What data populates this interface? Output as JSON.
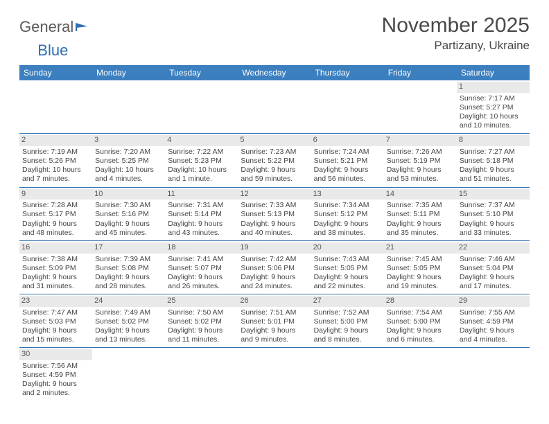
{
  "logo": {
    "text1": "General",
    "text2": "Blue"
  },
  "title": "November 2025",
  "location": "Partizany, Ukraine",
  "colors": {
    "header_bg": "#3b7fbf",
    "header_text": "#ffffff",
    "daynum_bg": "#e9e9e9",
    "rule": "#2f6fb0",
    "body_text": "#444444"
  },
  "day_names": [
    "Sunday",
    "Monday",
    "Tuesday",
    "Wednesday",
    "Thursday",
    "Friday",
    "Saturday"
  ],
  "weeks": [
    [
      {
        "empty": true
      },
      {
        "empty": true
      },
      {
        "empty": true
      },
      {
        "empty": true
      },
      {
        "empty": true
      },
      {
        "empty": true
      },
      {
        "d": "1",
        "sunrise": "Sunrise: 7:17 AM",
        "sunset": "Sunset: 5:27 PM",
        "dl1": "Daylight: 10 hours",
        "dl2": "and 10 minutes."
      }
    ],
    [
      {
        "d": "2",
        "sunrise": "Sunrise: 7:19 AM",
        "sunset": "Sunset: 5:26 PM",
        "dl1": "Daylight: 10 hours",
        "dl2": "and 7 minutes."
      },
      {
        "d": "3",
        "sunrise": "Sunrise: 7:20 AM",
        "sunset": "Sunset: 5:25 PM",
        "dl1": "Daylight: 10 hours",
        "dl2": "and 4 minutes."
      },
      {
        "d": "4",
        "sunrise": "Sunrise: 7:22 AM",
        "sunset": "Sunset: 5:23 PM",
        "dl1": "Daylight: 10 hours",
        "dl2": "and 1 minute."
      },
      {
        "d": "5",
        "sunrise": "Sunrise: 7:23 AM",
        "sunset": "Sunset: 5:22 PM",
        "dl1": "Daylight: 9 hours",
        "dl2": "and 59 minutes."
      },
      {
        "d": "6",
        "sunrise": "Sunrise: 7:24 AM",
        "sunset": "Sunset: 5:21 PM",
        "dl1": "Daylight: 9 hours",
        "dl2": "and 56 minutes."
      },
      {
        "d": "7",
        "sunrise": "Sunrise: 7:26 AM",
        "sunset": "Sunset: 5:19 PM",
        "dl1": "Daylight: 9 hours",
        "dl2": "and 53 minutes."
      },
      {
        "d": "8",
        "sunrise": "Sunrise: 7:27 AM",
        "sunset": "Sunset: 5:18 PM",
        "dl1": "Daylight: 9 hours",
        "dl2": "and 51 minutes."
      }
    ],
    [
      {
        "d": "9",
        "sunrise": "Sunrise: 7:28 AM",
        "sunset": "Sunset: 5:17 PM",
        "dl1": "Daylight: 9 hours",
        "dl2": "and 48 minutes."
      },
      {
        "d": "10",
        "sunrise": "Sunrise: 7:30 AM",
        "sunset": "Sunset: 5:16 PM",
        "dl1": "Daylight: 9 hours",
        "dl2": "and 45 minutes."
      },
      {
        "d": "11",
        "sunrise": "Sunrise: 7:31 AM",
        "sunset": "Sunset: 5:14 PM",
        "dl1": "Daylight: 9 hours",
        "dl2": "and 43 minutes."
      },
      {
        "d": "12",
        "sunrise": "Sunrise: 7:33 AM",
        "sunset": "Sunset: 5:13 PM",
        "dl1": "Daylight: 9 hours",
        "dl2": "and 40 minutes."
      },
      {
        "d": "13",
        "sunrise": "Sunrise: 7:34 AM",
        "sunset": "Sunset: 5:12 PM",
        "dl1": "Daylight: 9 hours",
        "dl2": "and 38 minutes."
      },
      {
        "d": "14",
        "sunrise": "Sunrise: 7:35 AM",
        "sunset": "Sunset: 5:11 PM",
        "dl1": "Daylight: 9 hours",
        "dl2": "and 35 minutes."
      },
      {
        "d": "15",
        "sunrise": "Sunrise: 7:37 AM",
        "sunset": "Sunset: 5:10 PM",
        "dl1": "Daylight: 9 hours",
        "dl2": "and 33 minutes."
      }
    ],
    [
      {
        "d": "16",
        "sunrise": "Sunrise: 7:38 AM",
        "sunset": "Sunset: 5:09 PM",
        "dl1": "Daylight: 9 hours",
        "dl2": "and 31 minutes."
      },
      {
        "d": "17",
        "sunrise": "Sunrise: 7:39 AM",
        "sunset": "Sunset: 5:08 PM",
        "dl1": "Daylight: 9 hours",
        "dl2": "and 28 minutes."
      },
      {
        "d": "18",
        "sunrise": "Sunrise: 7:41 AM",
        "sunset": "Sunset: 5:07 PM",
        "dl1": "Daylight: 9 hours",
        "dl2": "and 26 minutes."
      },
      {
        "d": "19",
        "sunrise": "Sunrise: 7:42 AM",
        "sunset": "Sunset: 5:06 PM",
        "dl1": "Daylight: 9 hours",
        "dl2": "and 24 minutes."
      },
      {
        "d": "20",
        "sunrise": "Sunrise: 7:43 AM",
        "sunset": "Sunset: 5:05 PM",
        "dl1": "Daylight: 9 hours",
        "dl2": "and 22 minutes."
      },
      {
        "d": "21",
        "sunrise": "Sunrise: 7:45 AM",
        "sunset": "Sunset: 5:05 PM",
        "dl1": "Daylight: 9 hours",
        "dl2": "and 19 minutes."
      },
      {
        "d": "22",
        "sunrise": "Sunrise: 7:46 AM",
        "sunset": "Sunset: 5:04 PM",
        "dl1": "Daylight: 9 hours",
        "dl2": "and 17 minutes."
      }
    ],
    [
      {
        "d": "23",
        "sunrise": "Sunrise: 7:47 AM",
        "sunset": "Sunset: 5:03 PM",
        "dl1": "Daylight: 9 hours",
        "dl2": "and 15 minutes."
      },
      {
        "d": "24",
        "sunrise": "Sunrise: 7:49 AM",
        "sunset": "Sunset: 5:02 PM",
        "dl1": "Daylight: 9 hours",
        "dl2": "and 13 minutes."
      },
      {
        "d": "25",
        "sunrise": "Sunrise: 7:50 AM",
        "sunset": "Sunset: 5:02 PM",
        "dl1": "Daylight: 9 hours",
        "dl2": "and 11 minutes."
      },
      {
        "d": "26",
        "sunrise": "Sunrise: 7:51 AM",
        "sunset": "Sunset: 5:01 PM",
        "dl1": "Daylight: 9 hours",
        "dl2": "and 9 minutes."
      },
      {
        "d": "27",
        "sunrise": "Sunrise: 7:52 AM",
        "sunset": "Sunset: 5:00 PM",
        "dl1": "Daylight: 9 hours",
        "dl2": "and 8 minutes."
      },
      {
        "d": "28",
        "sunrise": "Sunrise: 7:54 AM",
        "sunset": "Sunset: 5:00 PM",
        "dl1": "Daylight: 9 hours",
        "dl2": "and 6 minutes."
      },
      {
        "d": "29",
        "sunrise": "Sunrise: 7:55 AM",
        "sunset": "Sunset: 4:59 PM",
        "dl1": "Daylight: 9 hours",
        "dl2": "and 4 minutes."
      }
    ],
    [
      {
        "d": "30",
        "sunrise": "Sunrise: 7:56 AM",
        "sunset": "Sunset: 4:59 PM",
        "dl1": "Daylight: 9 hours",
        "dl2": "and 2 minutes."
      },
      {
        "empty": true
      },
      {
        "empty": true
      },
      {
        "empty": true
      },
      {
        "empty": true
      },
      {
        "empty": true
      },
      {
        "empty": true
      }
    ]
  ]
}
